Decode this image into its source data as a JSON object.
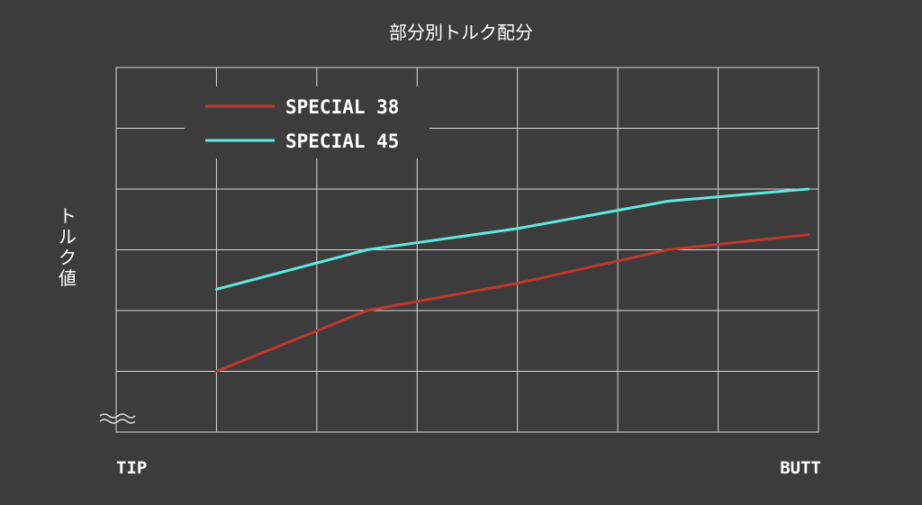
{
  "chart_data": {
    "type": "line",
    "title": "部分別トルク配分",
    "xlabel": "",
    "ylabel": "トルク値",
    "x_start_label": "TIP",
    "x_end_label": "BUTT",
    "axis_break_symbol": "≈",
    "grid": true,
    "legend_position": "top-left",
    "x": [
      1,
      2.5,
      4,
      5.5,
      6.9
    ],
    "xlim": [
      0,
      7
    ],
    "ylim": [
      0,
      6
    ],
    "series": [
      {
        "name": "SPECIAL 38",
        "color": "#c0392b",
        "values": [
          1,
          2,
          2.45,
          3,
          3.25
        ]
      },
      {
        "name": "SPECIAL 45",
        "color": "#5ee8e0",
        "values": [
          2.35,
          3,
          3.35,
          3.8,
          4
        ]
      }
    ]
  }
}
